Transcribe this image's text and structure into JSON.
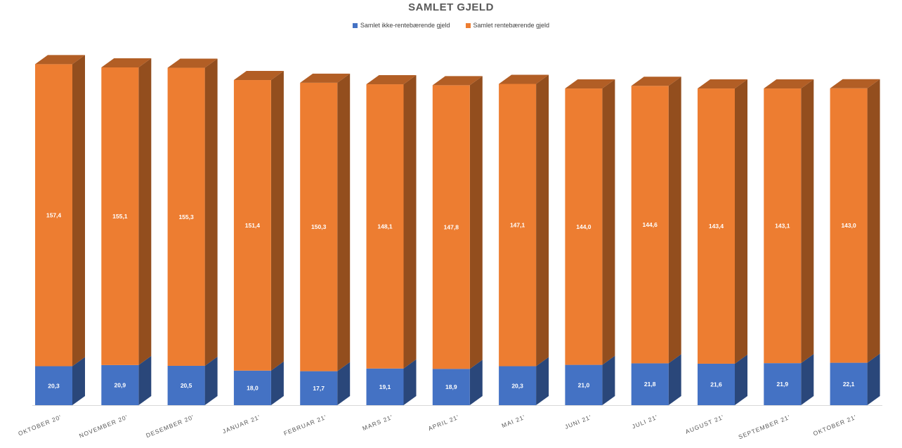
{
  "chart_data": {
    "type": "bar",
    "stacked": true,
    "three_d": true,
    "title": "SAMLET GJELD",
    "legend_position": "top",
    "grid": false,
    "categories": [
      "OKTOBER 20'",
      "NOVEMBER 20'",
      "DESEMBER 20'",
      "JANUAR 21'",
      "FEBRUAR 21'",
      "MARS 21'",
      "APRIL 21'",
      "MAI 21'",
      "JUNI 21'",
      "JULI 21'",
      "AUGUST 21'",
      "SEPTEMBER 21'",
      "OKTOBER 21'"
    ],
    "series": [
      {
        "name": "Samlet ikke-rentebærende gjeld",
        "color": "#4472C4",
        "values": [
          20.3,
          20.9,
          20.5,
          18.0,
          17.7,
          19.1,
          18.9,
          20.3,
          21.0,
          21.8,
          21.6,
          21.9,
          22.1
        ],
        "labels": [
          "20,3",
          "20,9",
          "20,5",
          "18,0",
          "17,7",
          "19,1",
          "18,9",
          "20,3",
          "21,0",
          "21,8",
          "21,6",
          "21,9",
          "22,1"
        ]
      },
      {
        "name": "Samlet rentebærende gjeld",
        "color": "#ED7D31",
        "values": [
          157.4,
          155.1,
          155.3,
          151.4,
          150.3,
          148.1,
          147.8,
          147.1,
          144.0,
          144.6,
          143.4,
          143.1,
          143.0
        ],
        "labels": [
          "157,4",
          "155,1",
          "155,3",
          "151,4",
          "150,3",
          "148,1",
          "147,8",
          "147,1",
          "144,0",
          "144,6",
          "143,4",
          "143,1",
          "143,0"
        ]
      }
    ]
  }
}
